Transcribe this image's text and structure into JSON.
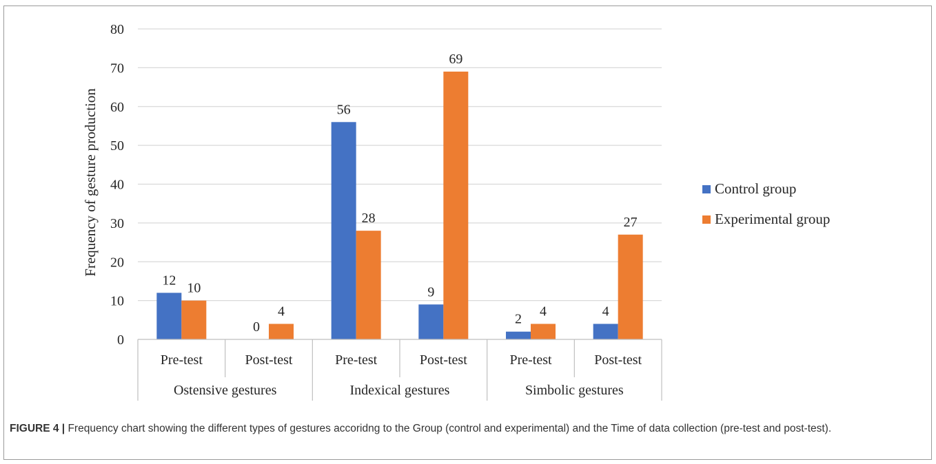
{
  "caption": {
    "label": "FIGURE 4 |",
    "text": "Frequency chart showing the different types of gestures accoridng to the Group (control and experimental) and the Time of data collection (pre-test and post-test)."
  },
  "colors": {
    "control": "#4472c4",
    "experimental": "#ed7d31",
    "grid": "#d9d9d9",
    "axis": "#bfbfbf"
  },
  "chart_data": {
    "type": "bar",
    "title": "",
    "ylabel": "Frequency of gesture production",
    "xlabel": "",
    "ylim": [
      0,
      80
    ],
    "yticks": [
      0,
      10,
      20,
      30,
      40,
      50,
      60,
      70,
      80
    ],
    "grid": true,
    "legend_position": "right",
    "groups": [
      {
        "label": "Ostensive gestures",
        "categories": [
          "Pre-test",
          "Post-test"
        ]
      },
      {
        "label": "Indexical gestures",
        "categories": [
          "Pre-test",
          "Post-test"
        ]
      },
      {
        "label": "Simbolic gestures",
        "categories": [
          "Pre-test",
          "Post-test"
        ]
      }
    ],
    "categories": [
      "Pre-test",
      "Post-test",
      "Pre-test",
      "Post-test",
      "Pre-test",
      "Post-test"
    ],
    "series": [
      {
        "name": "Control group",
        "color": "#4472c4",
        "values": [
          12,
          0,
          56,
          9,
          2,
          4
        ]
      },
      {
        "name": "Experimental group",
        "color": "#ed7d31",
        "values": [
          10,
          4,
          28,
          69,
          4,
          27
        ]
      }
    ]
  }
}
